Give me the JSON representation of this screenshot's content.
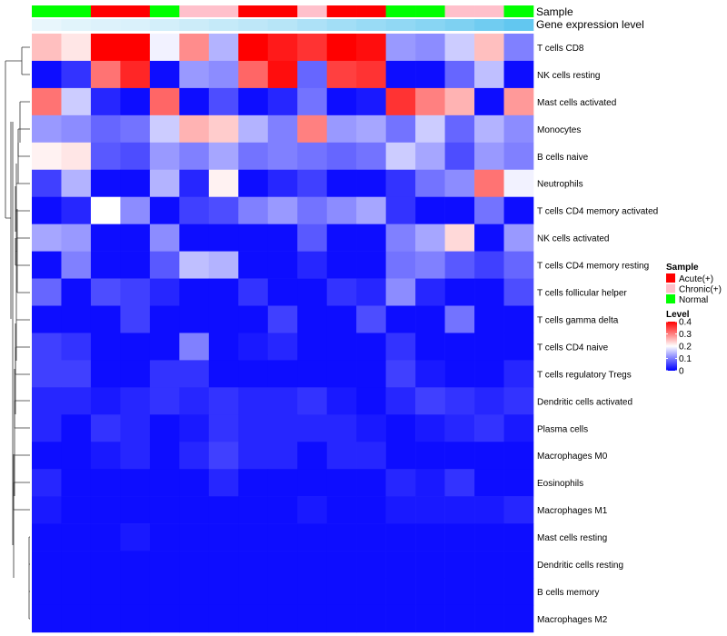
{
  "chart_data": {
    "type": "heatmap",
    "title": "",
    "annotation_labels": [
      "Sample",
      "Gene expression level"
    ],
    "columns": {
      "sample": [
        "Normal",
        "Normal",
        "Acute(+)",
        "Acute(+)",
        "Normal",
        "Chronic(+)",
        "Chronic(+)",
        "Acute(+)",
        "Acute(+)",
        "Chronic(+)",
        "Acute(+)",
        "Acute(+)",
        "Normal",
        "Normal",
        "Chronic(+)",
        "Chronic(+)",
        "Normal"
      ],
      "gene_expression_level": [
        0.0,
        0.05,
        0.08,
        0.1,
        0.15,
        0.2,
        0.25,
        0.3,
        0.35,
        0.42,
        0.5,
        0.56,
        0.62,
        0.68,
        0.75,
        0.85,
        0.95
      ]
    },
    "rows": [
      {
        "name": "T cells CD8",
        "values": [
          0.25,
          0.22,
          0.4,
          0.4,
          0.19,
          0.29,
          0.14,
          0.4,
          0.38,
          0.36,
          0.4,
          0.39,
          0.12,
          0.11,
          0.16,
          0.25,
          0.1
        ]
      },
      {
        "name": "NK cells resting",
        "values": [
          0.01,
          0.04,
          0.31,
          0.37,
          0.01,
          0.12,
          0.11,
          0.32,
          0.39,
          0.08,
          0.35,
          0.36,
          0.01,
          0.01,
          0.08,
          0.15,
          0.01
        ]
      },
      {
        "name": "Mast cells activated",
        "values": [
          0.31,
          0.16,
          0.03,
          0.01,
          0.32,
          0.01,
          0.06,
          0.01,
          0.03,
          0.09,
          0.01,
          0.02,
          0.36,
          0.3,
          0.26,
          0.01,
          0.28
        ]
      },
      {
        "name": "Monocytes",
        "values": [
          0.12,
          0.11,
          0.08,
          0.09,
          0.16,
          0.26,
          0.24,
          0.14,
          0.1,
          0.3,
          0.12,
          0.13,
          0.09,
          0.16,
          0.08,
          0.14,
          0.11
        ]
      },
      {
        "name": "B cells naive",
        "values": [
          0.21,
          0.22,
          0.07,
          0.06,
          0.12,
          0.1,
          0.13,
          0.09,
          0.1,
          0.09,
          0.08,
          0.09,
          0.16,
          0.13,
          0.06,
          0.12,
          0.1
        ]
      },
      {
        "name": "Neutrophils",
        "values": [
          0.05,
          0.14,
          0.01,
          0.01,
          0.14,
          0.03,
          0.21,
          0.01,
          0.03,
          0.05,
          0.01,
          0.01,
          0.04,
          0.09,
          0.11,
          0.31,
          0.19
        ]
      },
      {
        "name": "T cells CD4 memory activated",
        "values": [
          0.01,
          0.03,
          0.2,
          0.11,
          0.01,
          0.05,
          0.06,
          0.1,
          0.12,
          0.09,
          0.11,
          0.13,
          0.04,
          0.01,
          0.01,
          0.09,
          0.01
        ]
      },
      {
        "name": "NK cells activated",
        "values": [
          0.13,
          0.12,
          0.01,
          0.01,
          0.11,
          0.01,
          0.01,
          0.01,
          0.01,
          0.07,
          0.01,
          0.01,
          0.1,
          0.13,
          0.23,
          0.01,
          0.12
        ]
      },
      {
        "name": "T cells CD4 memory resting",
        "values": [
          0.01,
          0.1,
          0.01,
          0.01,
          0.07,
          0.15,
          0.14,
          0.01,
          0.01,
          0.03,
          0.01,
          0.01,
          0.09,
          0.1,
          0.07,
          0.05,
          0.08
        ]
      },
      {
        "name": "T cells follicular helper",
        "values": [
          0.08,
          0.01,
          0.06,
          0.05,
          0.03,
          0.01,
          0.01,
          0.04,
          0.01,
          0.01,
          0.04,
          0.03,
          0.11,
          0.03,
          0.01,
          0.01,
          0.06
        ]
      },
      {
        "name": "T cells gamma delta",
        "values": [
          0.01,
          0.01,
          0.01,
          0.05,
          0.01,
          0.01,
          0.01,
          0.01,
          0.05,
          0.01,
          0.01,
          0.06,
          0.01,
          0.01,
          0.09,
          0.01,
          0.01
        ]
      },
      {
        "name": "T cells CD4 naive",
        "values": [
          0.05,
          0.04,
          0.01,
          0.01,
          0.01,
          0.1,
          0.01,
          0.02,
          0.03,
          0.01,
          0.01,
          0.01,
          0.04,
          0.01,
          0.01,
          0.01,
          0.01
        ]
      },
      {
        "name": "T cells regulatory  Tregs",
        "values": [
          0.05,
          0.05,
          0.01,
          0.01,
          0.04,
          0.04,
          0.01,
          0.01,
          0.01,
          0.01,
          0.01,
          0.01,
          0.05,
          0.02,
          0.01,
          0.01,
          0.03
        ]
      },
      {
        "name": "Dendritic cells activated",
        "values": [
          0.03,
          0.03,
          0.02,
          0.03,
          0.04,
          0.03,
          0.04,
          0.03,
          0.03,
          0.04,
          0.02,
          0.01,
          0.03,
          0.05,
          0.04,
          0.03,
          0.04
        ]
      },
      {
        "name": "Plasma cells",
        "values": [
          0.03,
          0.01,
          0.04,
          0.03,
          0.01,
          0.02,
          0.04,
          0.03,
          0.03,
          0.03,
          0.03,
          0.02,
          0.01,
          0.02,
          0.03,
          0.04,
          0.02
        ]
      },
      {
        "name": "Macrophages M0",
        "values": [
          0.01,
          0.01,
          0.02,
          0.03,
          0.01,
          0.03,
          0.05,
          0.03,
          0.03,
          0.01,
          0.03,
          0.03,
          0.01,
          0.01,
          0.01,
          0.01,
          0.01
        ]
      },
      {
        "name": "Eosinophils",
        "values": [
          0.03,
          0.01,
          0.01,
          0.01,
          0.01,
          0.01,
          0.03,
          0.01,
          0.01,
          0.01,
          0.01,
          0.01,
          0.03,
          0.02,
          0.04,
          0.01,
          0.01
        ]
      },
      {
        "name": "Macrophages M1",
        "values": [
          0.02,
          0.01,
          0.01,
          0.01,
          0.01,
          0.01,
          0.01,
          0.01,
          0.01,
          0.02,
          0.01,
          0.01,
          0.02,
          0.02,
          0.02,
          0.02,
          0.03
        ]
      },
      {
        "name": "Mast cells resting",
        "values": [
          0.01,
          0.01,
          0.01,
          0.02,
          0.01,
          0.01,
          0.01,
          0.01,
          0.01,
          0.01,
          0.01,
          0.01,
          0.01,
          0.01,
          0.01,
          0.01,
          0.01
        ]
      },
      {
        "name": "Dendritic cells resting",
        "values": [
          0.01,
          0.01,
          0.01,
          0.01,
          0.01,
          0.01,
          0.01,
          0.01,
          0.01,
          0.01,
          0.01,
          0.01,
          0.01,
          0.01,
          0.01,
          0.01,
          0.01
        ]
      },
      {
        "name": "B cells memory",
        "values": [
          0.01,
          0.01,
          0.01,
          0.01,
          0.01,
          0.01,
          0.01,
          0.01,
          0.01,
          0.01,
          0.01,
          0.01,
          0.01,
          0.01,
          0.01,
          0.01,
          0.01
        ]
      },
      {
        "name": "Macrophages M2",
        "values": [
          0.01,
          0.01,
          0.01,
          0.01,
          0.01,
          0.01,
          0.01,
          0.01,
          0.01,
          0.01,
          0.01,
          0.01,
          0.01,
          0.01,
          0.01,
          0.01,
          0.01
        ]
      }
    ],
    "legend": {
      "sample_title": "Sample",
      "sample_entries": [
        {
          "label": "Acute(+)",
          "color": "#ff0000"
        },
        {
          "label": "Chronic(+)",
          "color": "#ffc0cb"
        },
        {
          "label": "Normal",
          "color": "#00ff00"
        }
      ],
      "level_title": "Level",
      "level_ticks": [
        {
          "label": "0.4",
          "value": 0.4
        },
        {
          "label": "0.3",
          "value": 0.3
        },
        {
          "label": "0.2",
          "value": 0.2
        },
        {
          "label": "0.1",
          "value": 0.1
        },
        {
          "label": "0",
          "value": 0
        }
      ],
      "range": [
        0,
        0.4
      ]
    },
    "colors": {
      "low": "#0000ff",
      "mid": "#ffffff",
      "high": "#ff0000",
      "expr_low": "#e8f6fc",
      "expr_high": "#5bc5ef"
    }
  }
}
